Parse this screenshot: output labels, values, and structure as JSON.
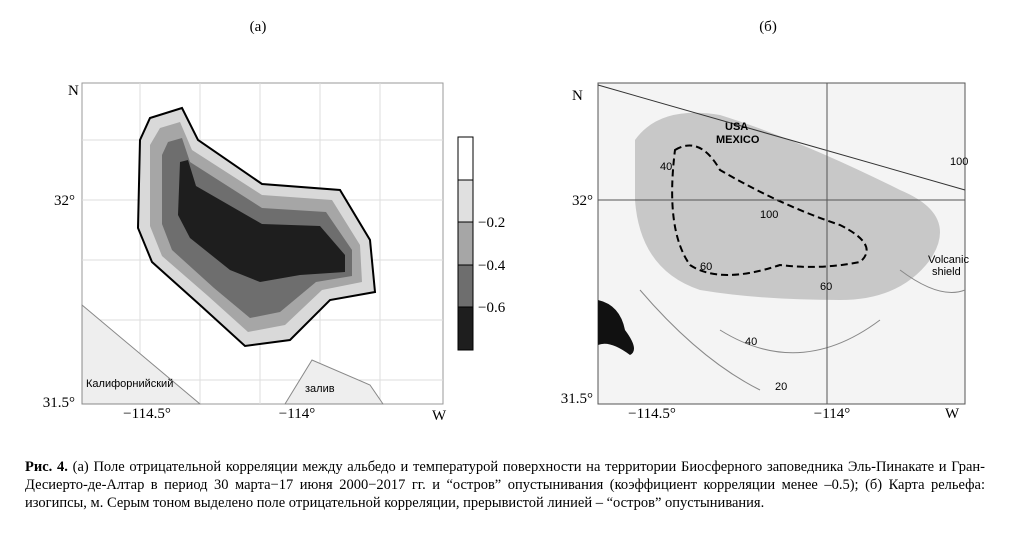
{
  "panel_a": {
    "label": "(а)",
    "north": "N",
    "west": "W",
    "lat_ticks": [
      "32°",
      "31.5°"
    ],
    "lon_ticks": [
      "−114.5°",
      "−114°"
    ],
    "colorbar_ticks": [
      "−0.2",
      "−0.4",
      "−0.6"
    ],
    "place_labels": [
      "Калифорнийский",
      "залив"
    ]
  },
  "panel_b": {
    "label": "(б)",
    "north": "N",
    "west": "W",
    "lat_ticks": [
      "32°",
      "31.5°"
    ],
    "lon_ticks": [
      "−114.5°",
      "−114°"
    ],
    "map_labels": [
      "USA",
      "MEXICO",
      "Volcanic",
      "shield",
      "40",
      "60",
      "100",
      "60",
      "40",
      "20",
      "100"
    ]
  },
  "caption": {
    "label": "Рис. 4.",
    "text": "(а) Поле отрицательной корреляции между альбедо и температурой поверхности на территории Биосферного заповедника Эль-Пинакате и Гран-Десиерто-де-Алтар в период 30 марта−17 июня 2000−2017 гг. и “остров” опустынивания (коэффициент корреляции менее –0.5); (б) Карта рельефа: изогипсы, м. Серым тоном выделено поле отрицательной корреляции, прерывистой линией – “остров” опустынивания."
  }
}
